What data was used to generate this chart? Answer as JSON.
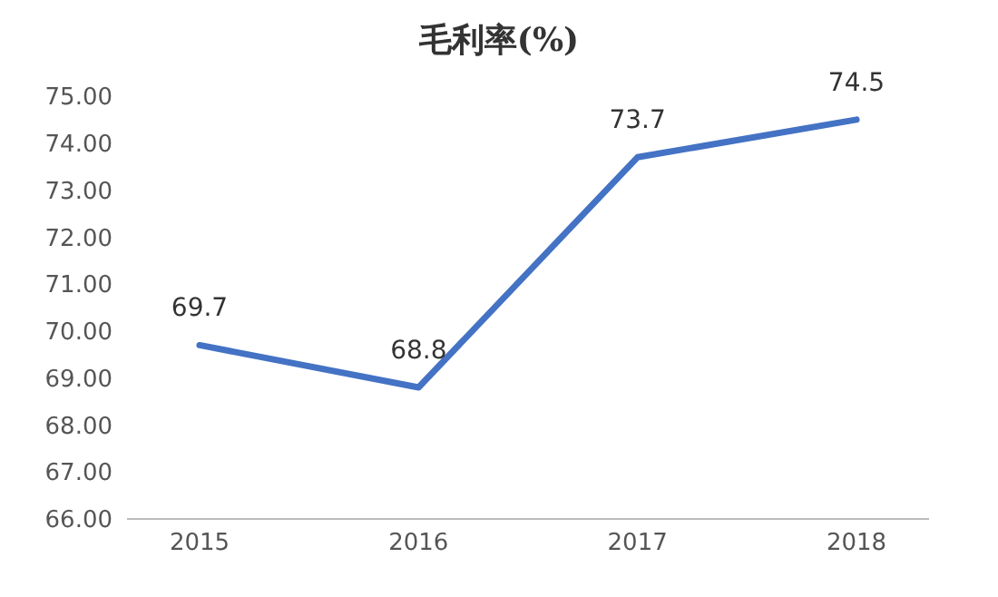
{
  "chart_data": {
    "type": "line",
    "title": "毛利率(%)",
    "categories": [
      "2015",
      "2016",
      "2017",
      "2018"
    ],
    "series": [
      {
        "color": "#4472c4",
        "values": [
          69.7,
          68.8,
          73.7,
          74.5
        ]
      }
    ],
    "ylim": [
      66,
      75
    ],
    "yticks": [
      {
        "value": 66,
        "label": "66.00"
      },
      {
        "value": 67,
        "label": "67.00"
      },
      {
        "value": 68,
        "label": "68.00"
      },
      {
        "value": 69,
        "label": "69.00"
      },
      {
        "value": 70,
        "label": "70.00"
      },
      {
        "value": 71,
        "label": "71.00"
      },
      {
        "value": 72,
        "label": "72.00"
      },
      {
        "value": 73,
        "label": "73.00"
      },
      {
        "value": 74,
        "label": "74.00"
      },
      {
        "value": 75,
        "label": "75.00"
      }
    ],
    "data_labels": true,
    "grid": false,
    "legend": false,
    "marker": "none",
    "line_style": "solid"
  }
}
